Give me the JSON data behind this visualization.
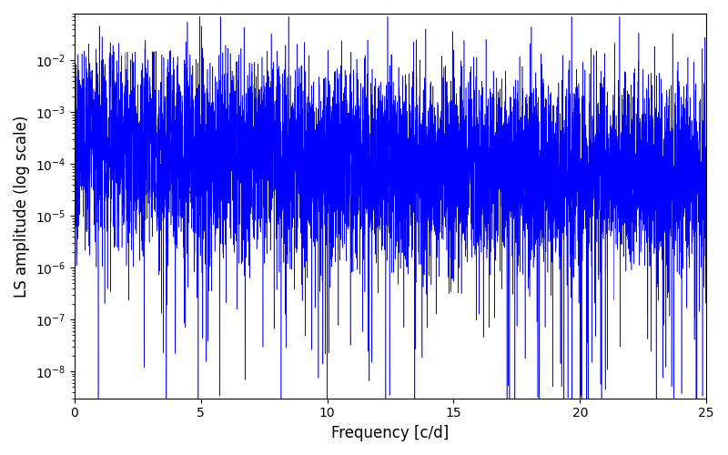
{
  "title": "",
  "xlabel": "Frequency [c/d]",
  "ylabel": "LS amplitude (log scale)",
  "xlim": [
    0,
    25
  ],
  "ylim": [
    3e-09,
    0.08
  ],
  "yscale": "log",
  "line_color": "blue",
  "line_width": 0.4,
  "freq_min": 0.0,
  "freq_max": 25.0,
  "n_points": 8000,
  "seed": 7,
  "background_color": "#ffffff",
  "figsize": [
    8.0,
    5.0
  ],
  "dpi": 100
}
